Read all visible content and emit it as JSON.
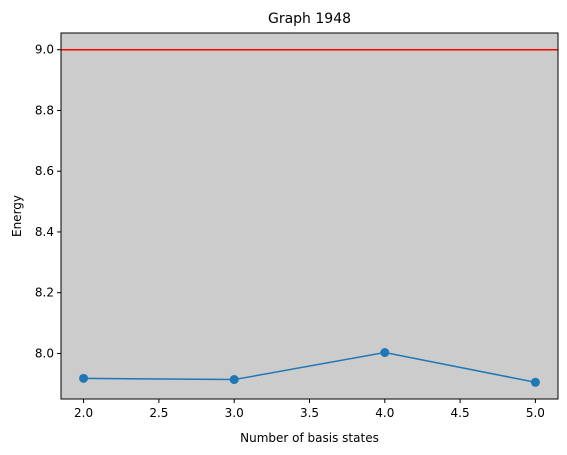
{
  "chart_data": {
    "type": "line",
    "title": "Graph 1948",
    "xlabel": "Number of basis states",
    "ylabel": "Energy",
    "xlim": [
      1.85,
      5.15
    ],
    "ylim": [
      7.85,
      9.055
    ],
    "xticks": [
      2.0,
      2.5,
      3.0,
      3.5,
      4.0,
      4.5,
      5.0
    ],
    "xtick_labels": [
      "2.0",
      "2.5",
      "3.0",
      "3.5",
      "4.0",
      "4.5",
      "5.0"
    ],
    "yticks": [
      8.0,
      8.2,
      8.4,
      8.6,
      8.8,
      9.0
    ],
    "ytick_labels": [
      "8.0",
      "8.2",
      "8.4",
      "8.6",
      "8.8",
      "9.0"
    ],
    "grid": false,
    "background": "#cccccc",
    "series": [
      {
        "x": [
          2,
          3,
          4,
          5
        ],
        "y": [
          7.918,
          7.914,
          8.003,
          7.905
        ],
        "color": "#1f77b4",
        "marker": "circle"
      }
    ],
    "reference_lines": [
      {
        "orientation": "horizontal",
        "y": 9.0,
        "color": "#ff0000"
      }
    ]
  }
}
